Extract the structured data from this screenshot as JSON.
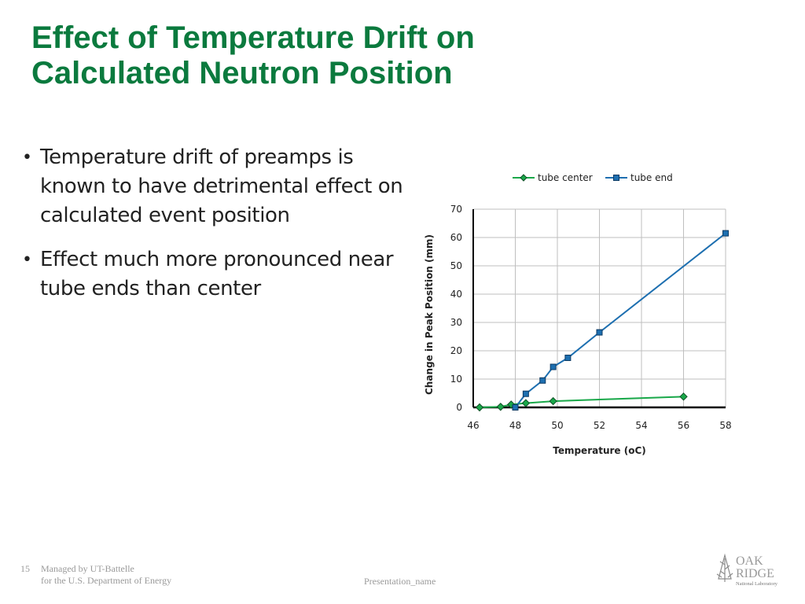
{
  "slide": {
    "title_line1": "Effect of Temperature Drift on",
    "title_line2": "Calculated Neutron Position",
    "bullets": [
      "Temperature drift of preamps is known to have detrimental effect on calculated event position",
      "Effect much more pronounced near tube ends than center"
    ],
    "bullet_glyph": "•"
  },
  "footer": {
    "slide_number": "15",
    "managed_line1": "Managed by UT-Battelle",
    "managed_line2": "for the U.S. Department of Energy",
    "presentation_name": "Presentation_name",
    "logo_word1": "OAK",
    "logo_word2": "RIDGE",
    "logo_tagline": "National Laboratory"
  },
  "colors": {
    "title": "#0b7a3e",
    "tube_center": "#1aa84a",
    "tube_end": "#1d6fb0",
    "grid": "#bfbfbf",
    "footer_text": "#9a9a9a"
  },
  "chart_data": {
    "type": "line",
    "title": "",
    "xlabel": "Temperature (oC)",
    "ylabel": "Change in Peak Position (mm)",
    "xlim": [
      46,
      58
    ],
    "ylim": [
      0,
      70
    ],
    "xticks": [
      46,
      48,
      50,
      52,
      54,
      56,
      58
    ],
    "yticks": [
      0,
      10,
      20,
      30,
      40,
      50,
      60,
      70
    ],
    "grid": true,
    "legend_position": "top",
    "series": [
      {
        "name": "tube center",
        "marker": "diamond",
        "color": "#1aa84a",
        "x": [
          46.3,
          47.3,
          47.8,
          48.5,
          49.8,
          56.0
        ],
        "y": [
          0,
          0.2,
          1.0,
          1.5,
          2.2,
          3.8
        ]
      },
      {
        "name": "tube end",
        "marker": "square",
        "color": "#1d6fb0",
        "x": [
          48.0,
          48.5,
          49.3,
          49.8,
          50.5,
          52.0,
          58.0
        ],
        "y": [
          0,
          4.8,
          9.5,
          14.3,
          17.5,
          26.5,
          61.5
        ]
      }
    ]
  }
}
